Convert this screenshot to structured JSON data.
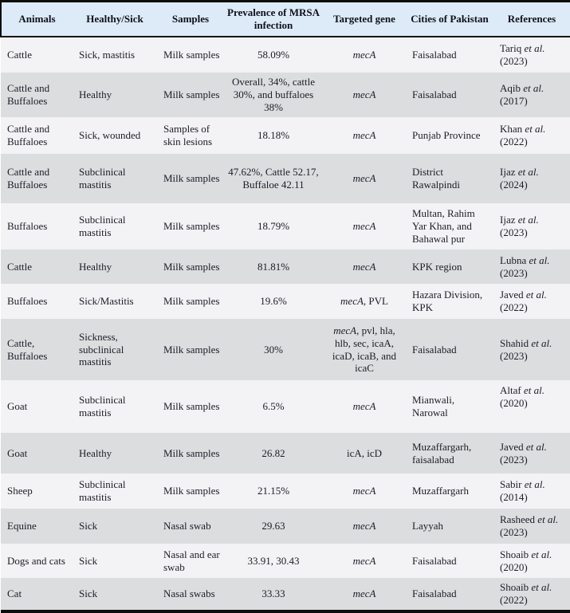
{
  "labels": {
    "etal": "et al."
  },
  "colors": {
    "header_bg": "#dcebf7",
    "row_light": "#f3f3f5",
    "row_dark": "#dcdddf",
    "border_black": "#0d0d0d",
    "text": "#1c1c26"
  },
  "table": {
    "columns": [
      "Animals",
      "Healthy/Sick",
      "Samples",
      "Prevalence of MRSA infection",
      "Targeted gene",
      "Cities of Pakistan",
      "References"
    ],
    "rows": [
      {
        "animals": "Cattle",
        "health": "Sick, mastitis",
        "samples": "Milk samples",
        "prevalence": "58.09%",
        "gene_italic": "mecA",
        "gene_rest": "",
        "cities": "Faisalabad",
        "ref_author": "Tariq",
        "ref_year": "(2023)"
      },
      {
        "animals": "Cattle and Buffaloes",
        "health": "Healthy",
        "samples": "Milk samples",
        "prevalence": "Overall, 34%, cattle 30%, and buffaloes 38%",
        "gene_italic": "mecA",
        "gene_rest": "",
        "cities": "Faisalabad",
        "ref_author": "Aqib",
        "ref_year": "(2017)"
      },
      {
        "animals": "Cattle and Buffaloes",
        "health": "Sick, wounded",
        "samples": "Samples of skin lesions",
        "prevalence": "18.18%",
        "gene_italic": "mecA",
        "gene_rest": "",
        "cities": "Punjab Province",
        "ref_author": "Khan",
        "ref_year": "(2022)"
      },
      {
        "animals": "Cattle and Buffaloes",
        "health": "Subclinical mastitis",
        "samples": "Milk samples",
        "prevalence": "47.62%, Cattle 52.17, Buffaloe 42.11",
        "gene_italic": "mecA",
        "gene_rest": "",
        "cities": "District Rawalpindi",
        "ref_author": "Ijaz",
        "ref_year": "(2024)"
      },
      {
        "animals": "Buffaloes",
        "health": "Subclinical mastitis",
        "samples": "Milk samples",
        "prevalence": "18.79%",
        "gene_italic": "mecA",
        "gene_rest": "",
        "cities": "Multan, Rahim Yar Khan, and Bahawal pur",
        "ref_author": "Ijaz",
        "ref_year": "(2023)"
      },
      {
        "animals": "Cattle",
        "health": "Healthy",
        "samples": "Milk samples",
        "prevalence": "81.81%",
        "gene_italic": "mecA",
        "gene_rest": "",
        "cities": "KPK region",
        "ref_author": "Lubna",
        "ref_year": "(2023)"
      },
      {
        "animals": "Buffaloes",
        "health": "Sick/Mastitis",
        "samples": "Milk samples",
        "prevalence": "19.6%",
        "gene_italic": "mecA",
        "gene_rest": ", PVL",
        "cities": "Hazara Division, KPK",
        "ref_author": "Javed",
        "ref_year": "(2022)"
      },
      {
        "animals": "Cattle, Buffaloes",
        "health": "Sickness, subclinical mastitis",
        "samples": "Milk samples",
        "prevalence": "30%",
        "gene_italic": "mecA",
        "gene_rest": ", pvl, hla, hlb, sec, icaA, icaD, icaB, and icaC",
        "cities": "Faisalabad",
        "ref_author": "Shahid",
        "ref_year": "(2023)"
      },
      {
        "animals": "Goat",
        "health": "Subclinical mastitis",
        "samples": "Milk samples",
        "prevalence": "6.5%",
        "gene_italic": "mecA",
        "gene_rest": "",
        "cities": "Mianwali, Narowal",
        "ref_author": "Altaf",
        "ref_year": "(2020)"
      },
      {
        "animals": "Goat",
        "health": "Healthy",
        "samples": "Milk samples",
        "prevalence": "26.82",
        "gene_italic": "",
        "gene_rest": "icA, icD",
        "cities": "Muzaffargarh, faisalabad",
        "ref_author": "Javed",
        "ref_year": "(2023)"
      },
      {
        "animals": "Sheep",
        "health": "Subclinical mastitis",
        "samples": "Milk samples",
        "prevalence": "21.15%",
        "gene_italic": "mecA",
        "gene_rest": "",
        "cities": "Muzaffargarh",
        "ref_author": "Sabir",
        "ref_year": "(2014)"
      },
      {
        "animals": "Equine",
        "health": "Sick",
        "samples": "Nasal swab",
        "prevalence": "29.63",
        "gene_italic": "mecA",
        "gene_rest": "",
        "cities": "Layyah",
        "ref_author": "Rasheed",
        "ref_year": "(2023)"
      },
      {
        "animals": "Dogs and cats",
        "health": "Sick",
        "samples": "Nasal and ear swab",
        "prevalence": "33.91, 30.43",
        "gene_italic": "mecA",
        "gene_rest": "",
        "cities": "Faisalabad",
        "ref_author": "Shoaib",
        "ref_year": "(2020)"
      },
      {
        "animals": "Cat",
        "health": "Sick",
        "samples": "Nasal swabs",
        "prevalence": "33.33",
        "gene_italic": "mecA",
        "gene_rest": "",
        "cities": "Faisalabad",
        "ref_author": "Shoaib",
        "ref_year": "(2022)"
      }
    ]
  }
}
